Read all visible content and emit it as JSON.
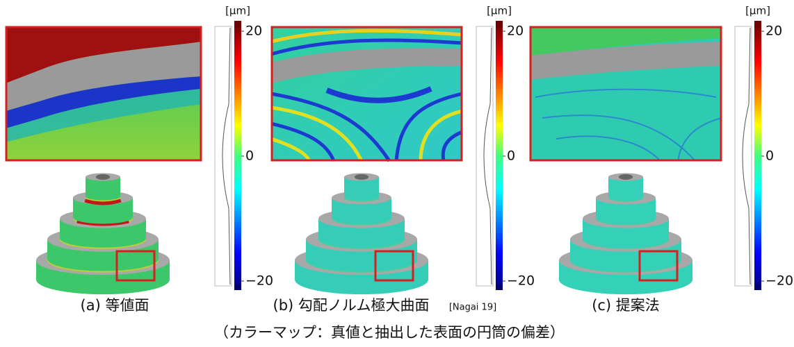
{
  "panels": [
    {
      "label": "(a) 等値面",
      "colorbar": {
        "unit": "[μm]",
        "lim": [
          -20,
          20
        ],
        "ticks": [
          {
            "value": -20,
            "label": "−20"
          },
          0,
          20
        ]
      }
    },
    {
      "label": "(b) 勾配ノルム極大曲面",
      "reference": "[Nagai 19]",
      "colorbar": {
        "unit": "[μm]",
        "lim": [
          -20,
          20
        ],
        "ticks": [
          {
            "value": -20,
            "label": "−20"
          },
          0,
          20
        ]
      }
    },
    {
      "label": "(c) 提案法",
      "colorbar": {
        "unit": "[μm]",
        "lim": [
          -20,
          20
        ],
        "ticks": [
          {
            "value": -20,
            "label": "−20"
          },
          0,
          20
        ]
      }
    }
  ],
  "caption": "（カラーマップ：真値と抽出した表面の円筒の偏差）"
}
